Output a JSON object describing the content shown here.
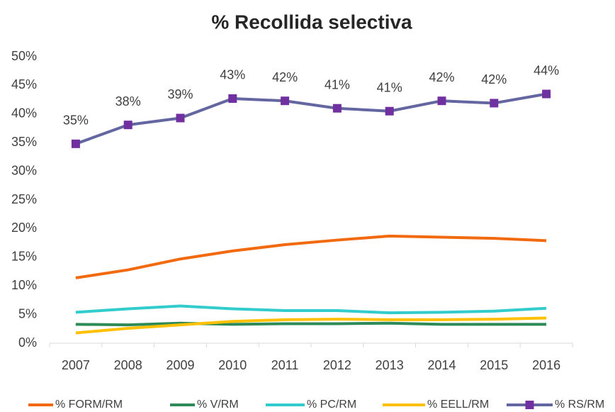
{
  "chart_data": {
    "type": "line",
    "title": "% Recollida selectiva",
    "categories": [
      "2007",
      "2008",
      "2009",
      "2010",
      "2011",
      "2012",
      "2013",
      "2014",
      "2015",
      "2016"
    ],
    "series": [
      {
        "name": "% FORM/RM",
        "color": "#f26a10",
        "values": [
          11.4,
          12.8,
          14.7,
          16.1,
          17.2,
          18.0,
          18.7,
          18.5,
          18.3,
          17.9
        ]
      },
      {
        "name": "% V/RM",
        "color": "#2e8b57",
        "values": [
          3.3,
          3.2,
          3.5,
          3.3,
          3.4,
          3.4,
          3.5,
          3.3,
          3.3,
          3.3
        ]
      },
      {
        "name": "% PC/RM",
        "color": "#33cccc",
        "values": [
          5.4,
          6.0,
          6.5,
          6.0,
          5.7,
          5.7,
          5.3,
          5.4,
          5.6,
          6.1
        ]
      },
      {
        "name": "% EELL/RM",
        "color": "#ffc000",
        "values": [
          1.8,
          2.6,
          3.2,
          3.8,
          4.1,
          4.2,
          4.1,
          4.1,
          4.2,
          4.4
        ]
      },
      {
        "name": "% RS/RM",
        "color": "#6366a0",
        "marker_color": "#7030a0",
        "values": [
          34.8,
          38.1,
          39.3,
          42.7,
          42.3,
          41.0,
          40.5,
          42.3,
          41.9,
          43.5
        ],
        "value_labels": [
          "35%",
          "38%",
          "39%",
          "43%",
          "42%",
          "41%",
          "41%",
          "42%",
          "42%",
          "44%"
        ]
      }
    ],
    "ylim": [
      0,
      50
    ],
    "yticks": [
      {
        "value": 0,
        "label": "0%"
      },
      {
        "value": 5,
        "label": "5%"
      },
      {
        "value": 10,
        "label": "10%"
      },
      {
        "value": 15,
        "label": "15%"
      },
      {
        "value": 20,
        "label": "20%"
      },
      {
        "value": 25,
        "label": "25%"
      },
      {
        "value": 30,
        "label": "30%"
      },
      {
        "value": 35,
        "label": "35%"
      },
      {
        "value": 40,
        "label": "40%"
      },
      {
        "value": 45,
        "label": "45%"
      },
      {
        "value": 50,
        "label": "50%"
      }
    ],
    "legend": "bottom"
  }
}
